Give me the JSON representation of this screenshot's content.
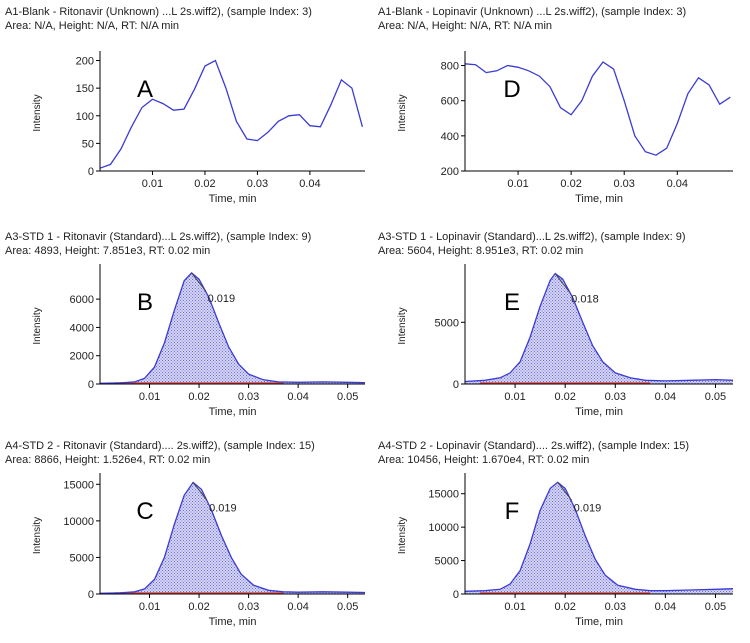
{
  "colors": {
    "line": "#3b3bd6",
    "fill": "#c9c9f0",
    "baseline": "#d94040",
    "axis": "#000000",
    "text": "#222222"
  },
  "chart_data": [
    {
      "type": "line",
      "panel_letter": "A",
      "header_line1": "A1-Blank - Ritonavir (Unknown) ...L 2s.wiff2), (sample Index: 3)",
      "header_line2": "Area: N/A, Height: N/A, RT: N/A min",
      "xlabel": "Time, min",
      "ylabel": "Intensity",
      "xlim": [
        0.0,
        0.0505
      ],
      "ylim": [
        0,
        210
      ],
      "xticks": [
        0.01,
        0.02,
        0.03,
        0.04
      ],
      "xtick_labels": [
        "0.01",
        "0.02",
        "0.03",
        "0.04"
      ],
      "yticks": [
        0,
        50,
        100,
        150,
        200
      ],
      "ytick_labels": [
        "0",
        "50",
        "100",
        "150",
        "200"
      ],
      "filled": false,
      "peak_label": "",
      "x": [
        0.0,
        0.002,
        0.004,
        0.006,
        0.008,
        0.01,
        0.012,
        0.014,
        0.016,
        0.018,
        0.02,
        0.022,
        0.024,
        0.026,
        0.028,
        0.03,
        0.032,
        0.034,
        0.036,
        0.038,
        0.04,
        0.042,
        0.044,
        0.046,
        0.048,
        0.05
      ],
      "y": [
        5,
        12,
        40,
        80,
        115,
        130,
        122,
        110,
        112,
        148,
        190,
        200,
        150,
        90,
        58,
        55,
        70,
        90,
        100,
        102,
        82,
        80,
        120,
        165,
        150,
        80
      ]
    },
    {
      "type": "line",
      "panel_letter": "D",
      "header_line1": "A1-Blank - Lopinavir (Unknown) ...L 2s.wiff2), (sample Index: 3)",
      "header_line2": "Area: N/A, Height: N/A, RT: N/A min",
      "xlabel": "Time, min",
      "ylabel": "Intensity",
      "xlim": [
        0.0,
        0.0505
      ],
      "ylim": [
        200,
        860
      ],
      "xticks": [
        0.01,
        0.02,
        0.03,
        0.04
      ],
      "xtick_labels": [
        "0.01",
        "0.02",
        "0.03",
        "0.04"
      ],
      "yticks": [
        200,
        400,
        600,
        800
      ],
      "ytick_labels": [
        "200",
        "400",
        "600",
        "800"
      ],
      "filled": false,
      "peak_label": "",
      "x": [
        0.0,
        0.002,
        0.004,
        0.006,
        0.008,
        0.01,
        0.012,
        0.014,
        0.016,
        0.018,
        0.02,
        0.022,
        0.024,
        0.026,
        0.028,
        0.03,
        0.032,
        0.034,
        0.036,
        0.038,
        0.04,
        0.042,
        0.044,
        0.046,
        0.048,
        0.05
      ],
      "y": [
        810,
        805,
        760,
        770,
        800,
        790,
        770,
        740,
        680,
        560,
        520,
        600,
        740,
        820,
        780,
        600,
        400,
        310,
        290,
        330,
        470,
        640,
        730,
        690,
        580,
        620
      ]
    },
    {
      "type": "area",
      "panel_letter": "B",
      "header_line1": "A3-STD 1 - Ritonavir (Standard)...L 2s.wiff2), (sample Index: 9)",
      "header_line2": "Area: 4893, Height: 7.851e3, RT: 0.02 min",
      "xlabel": "Time, min",
      "ylabel": "Intensity",
      "xlim": [
        0.0,
        0.0535
      ],
      "ylim": [
        0,
        8200
      ],
      "xticks": [
        0.01,
        0.02,
        0.03,
        0.04,
        0.05
      ],
      "xtick_labels": [
        "0.01",
        "0.02",
        "0.03",
        "0.04",
        "0.05"
      ],
      "yticks": [
        0,
        2000,
        4000,
        6000
      ],
      "ytick_labels": [
        "0",
        "2000",
        "4000",
        "6000"
      ],
      "filled": true,
      "peak_label": "0.019",
      "peak": {
        "x": 0.0185,
        "y": 7851
      },
      "x": [
        0.0,
        0.004,
        0.007,
        0.009,
        0.011,
        0.013,
        0.015,
        0.017,
        0.0185,
        0.02,
        0.022,
        0.024,
        0.026,
        0.028,
        0.03,
        0.033,
        0.036,
        0.04,
        0.045,
        0.05,
        0.0535
      ],
      "y": [
        50,
        80,
        150,
        400,
        1200,
        2900,
        5200,
        7300,
        7851,
        7400,
        6100,
        4300,
        2600,
        1400,
        700,
        300,
        150,
        120,
        150,
        120,
        100
      ]
    },
    {
      "type": "area",
      "panel_letter": "E",
      "header_line1": "A3-STD 1 - Lopinavir (Standard)...L 2s.wiff2), (sample Index: 9)",
      "header_line2": "Area: 5604, Height: 8.951e3, RT: 0.02 min",
      "xlabel": "Time, min",
      "ylabel": "Intensity",
      "xlim": [
        0.0,
        0.0535
      ],
      "ylim": [
        0,
        9400
      ],
      "xticks": [
        0.01,
        0.02,
        0.03,
        0.04,
        0.05
      ],
      "xtick_labels": [
        "0.01",
        "0.02",
        "0.03",
        "0.04",
        "0.05"
      ],
      "yticks": [
        0,
        5000
      ],
      "ytick_labels": [
        "0",
        "5000"
      ],
      "filled": true,
      "peak_label": "0.018",
      "peak": {
        "x": 0.018,
        "y": 8951
      },
      "x": [
        0.0,
        0.004,
        0.007,
        0.009,
        0.011,
        0.013,
        0.015,
        0.017,
        0.018,
        0.0195,
        0.0215,
        0.0235,
        0.0255,
        0.0275,
        0.03,
        0.033,
        0.036,
        0.04,
        0.045,
        0.05,
        0.0535
      ],
      "y": [
        200,
        300,
        500,
        900,
        1800,
        3800,
        6300,
        8400,
        8951,
        8500,
        7000,
        5000,
        3100,
        1800,
        900,
        500,
        300,
        250,
        300,
        350,
        300
      ]
    },
    {
      "type": "area",
      "panel_letter": "C",
      "header_line1": "A4-STD 2 - Ritonavir (Standard).... 2s.wiff2), (sample Index: 15)",
      "header_line2": "Area: 8866, Height: 1.526e4, RT: 0.02 min",
      "xlabel": "Time, min",
      "ylabel": "Intensity",
      "xlim": [
        0.0,
        0.0535
      ],
      "ylim": [
        0,
        16000
      ],
      "xticks": [
        0.01,
        0.02,
        0.03,
        0.04,
        0.05
      ],
      "xtick_labels": [
        "0.01",
        "0.02",
        "0.03",
        "0.04",
        "0.05"
      ],
      "yticks": [
        0,
        5000,
        10000,
        15000
      ],
      "ytick_labels": [
        "0",
        "5000",
        "10000",
        "15000"
      ],
      "filled": true,
      "peak_label": "0.019",
      "peak": {
        "x": 0.0188,
        "y": 15260
      },
      "x": [
        0.0,
        0.004,
        0.007,
        0.009,
        0.011,
        0.013,
        0.015,
        0.017,
        0.0188,
        0.0205,
        0.0225,
        0.0245,
        0.0265,
        0.0285,
        0.031,
        0.034,
        0.037,
        0.04,
        0.045,
        0.05,
        0.0535
      ],
      "y": [
        100,
        150,
        300,
        700,
        2000,
        5000,
        9500,
        13500,
        15260,
        14300,
        11500,
        8000,
        5000,
        2700,
        1200,
        500,
        300,
        250,
        300,
        250,
        200
      ]
    },
    {
      "type": "area",
      "panel_letter": "F",
      "header_line1": "A4-STD 2 - Lopinavir (Standard).... 2s.wiff2), (sample Index: 15)",
      "header_line2": "Area: 10456, Height: 1.670e4, RT: 0.02 min",
      "xlabel": "Time, min",
      "ylabel": "Intensity",
      "xlim": [
        0.0,
        0.0535
      ],
      "ylim": [
        0,
        17500
      ],
      "xticks": [
        0.01,
        0.02,
        0.03,
        0.04,
        0.05
      ],
      "xtick_labels": [
        "0.01",
        "0.02",
        "0.03",
        "0.04",
        "0.05"
      ],
      "yticks": [
        0,
        5000,
        10000,
        15000
      ],
      "ytick_labels": [
        "0",
        "5000",
        "10000",
        "15000"
      ],
      "filled": true,
      "peak_label": "0.019",
      "peak": {
        "x": 0.0185,
        "y": 16700
      },
      "x": [
        0.0,
        0.004,
        0.007,
        0.009,
        0.011,
        0.013,
        0.015,
        0.017,
        0.0185,
        0.02,
        0.022,
        0.024,
        0.026,
        0.028,
        0.0305,
        0.034,
        0.037,
        0.04,
        0.045,
        0.05,
        0.0535
      ],
      "y": [
        400,
        500,
        700,
        1500,
        3500,
        7500,
        12500,
        15800,
        16700,
        15800,
        12700,
        8700,
        5200,
        2800,
        1300,
        700,
        500,
        500,
        600,
        700,
        800
      ]
    }
  ]
}
